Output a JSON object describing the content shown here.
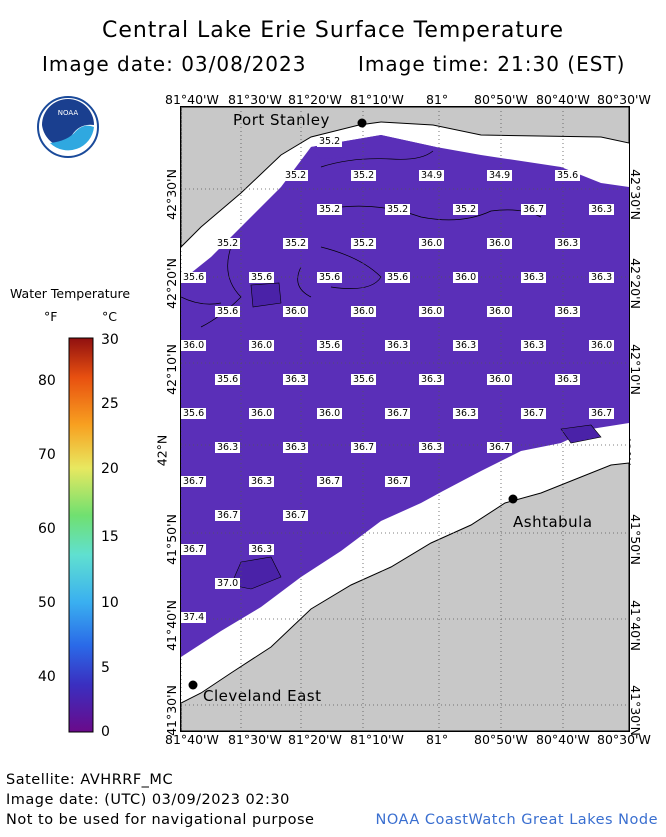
{
  "title": "Central Lake Erie Surface Temperature",
  "image_date": "Image date: 03/08/2023",
  "image_time": "Image time: 21:30 (EST)",
  "lon_labels": [
    "81°40'W",
    "81°30'W",
    "81°20'W",
    "81°10'W",
    "81°",
    "80°50'W",
    "80°40'W",
    "80°30'W"
  ],
  "lat_labels": [
    "42°30'N",
    "42°20'N",
    "42°10'N",
    "42°N",
    "41°50'N",
    "41°40'N",
    "41°30'N"
  ],
  "legend": {
    "title": "Water Temperature",
    "unit_f": "°F",
    "unit_c": "°C",
    "f_ticks": [
      "80",
      "70",
      "60",
      "50",
      "40"
    ],
    "c_ticks": [
      "30",
      "25",
      "20",
      "15",
      "10",
      "5",
      "0"
    ]
  },
  "cities": {
    "port_stanley": "Port Stanley",
    "ashtabula": "Ashtabula",
    "cleveland_east": "Cleveland East"
  },
  "temperature_labels": {
    "row1": [
      "35.2"
    ],
    "row2": [
      "35.2",
      "35.2",
      "34.9",
      "34.9",
      "35.6"
    ],
    "row3": [
      "35.2",
      "35.2",
      "35.2",
      "36.7",
      "36.3"
    ],
    "row4": [
      "35.2",
      "35.2",
      "35.2",
      "36.0",
      "36.0",
      "36.3"
    ],
    "row5": [
      "35.6",
      "35.6",
      "35.6",
      "35.6",
      "36.0",
      "36.3",
      "36.3"
    ],
    "row6": [
      "35.6",
      "36.0",
      "36.0",
      "36.0",
      "36.0",
      "36.3"
    ],
    "row7": [
      "36.0",
      "36.0",
      "35.6",
      "36.3",
      "36.3",
      "36.3",
      "36.0"
    ],
    "row8": [
      "35.6",
      "36.3",
      "35.6",
      "36.3",
      "36.0",
      "36.3"
    ],
    "row9": [
      "35.6",
      "36.0",
      "36.0",
      "36.7",
      "36.3",
      "36.7",
      "36.7"
    ],
    "row10": [
      "36.3",
      "36.3",
      "36.7",
      "36.3",
      "36.7"
    ],
    "row11": [
      "36.7",
      "36.3",
      "36.7",
      "36.7"
    ],
    "row12": [
      "36.7",
      "36.7"
    ],
    "row13": [
      "36.7",
      "36.3"
    ],
    "row14": [
      "37.0"
    ],
    "row15": [
      "37.4"
    ]
  },
  "footer": {
    "satellite": "Satellite: AVHRRF_MC",
    "utc_date": "Image date: (UTC) 03/09/2023  02:30",
    "disclaimer": "Not to be used for navigational purpose",
    "credit": "NOAA CoastWatch Great Lakes Node"
  },
  "colors": {
    "water": "#5a2fb8",
    "land": "#c8c8c8",
    "ice_cloud": "#ffffff",
    "credit": "#3a6fd0"
  }
}
